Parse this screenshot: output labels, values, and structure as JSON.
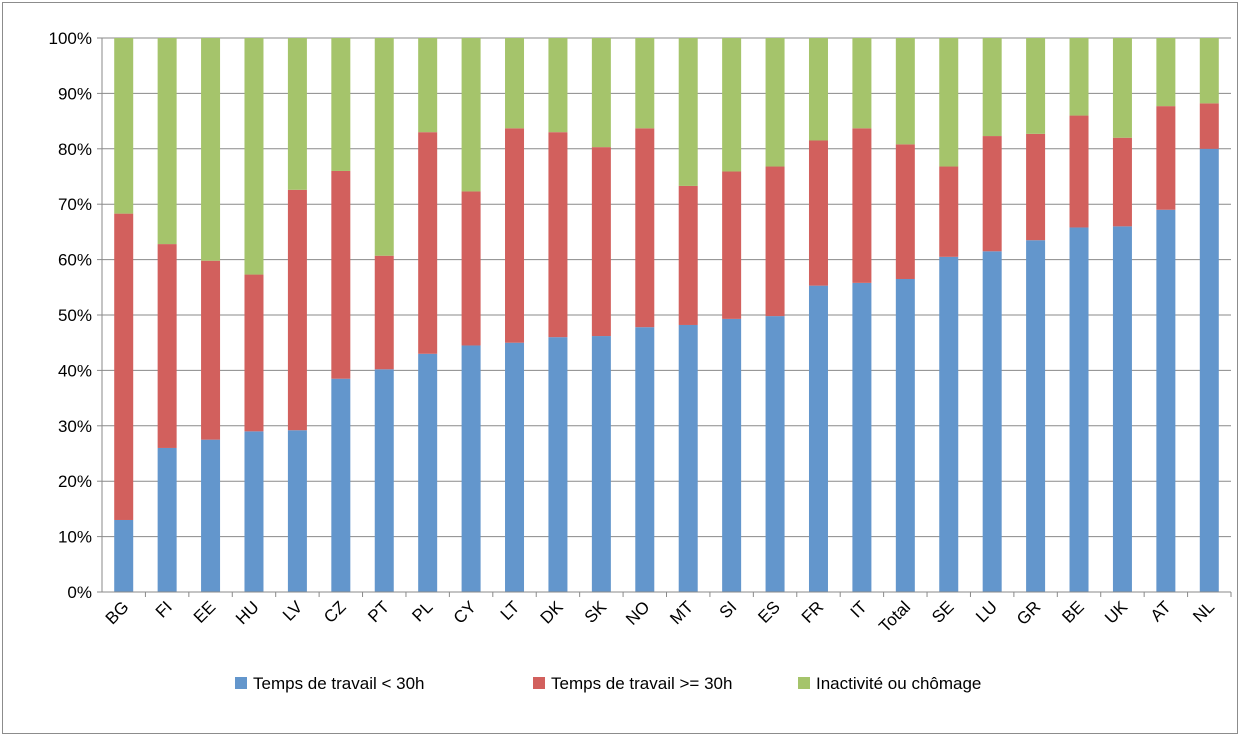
{
  "chart_data": {
    "type": "bar",
    "stacked": true,
    "categories": [
      "BG",
      "FI",
      "EE",
      "HU",
      "LV",
      "CZ",
      "PT",
      "PL",
      "CY",
      "LT",
      "DK",
      "SK",
      "NO",
      "MT",
      "SI",
      "ES",
      "FR",
      "IT",
      "Total",
      "SE",
      "LU",
      "GR",
      "BE",
      "UK",
      "AT",
      "NL"
    ],
    "series": [
      {
        "name": "Temps de travail < 30h",
        "color": "#6396CC",
        "values": [
          13,
          26,
          27.5,
          29,
          29.2,
          38.5,
          40.2,
          43,
          44.5,
          45,
          46,
          46.2,
          47.8,
          48.2,
          49.3,
          49.8,
          55.3,
          55.8,
          56.5,
          60.5,
          61.5,
          63.5,
          65.8,
          66,
          69,
          80
        ]
      },
      {
        "name": "Temps de travail >= 30h",
        "color": "#D2605D",
        "values": [
          55.3,
          36.8,
          32.3,
          28.3,
          43.4,
          37.5,
          20.5,
          40,
          27.8,
          38.7,
          37,
          34.1,
          35.9,
          25.1,
          26.6,
          27,
          26.2,
          27.9,
          24.3,
          16.3,
          20.8,
          19.2,
          20.2,
          16,
          18.7,
          8.2
        ]
      },
      {
        "name": "Inactivité ou chômage",
        "color": "#A5C46B",
        "values": [
          31.7,
          37.2,
          40.2,
          42.7,
          27.4,
          24,
          39.3,
          17,
          27.7,
          16.3,
          17,
          19.7,
          16.3,
          26.7,
          24.1,
          23.2,
          18.5,
          16.3,
          19.2,
          23.2,
          17.7,
          17.3,
          14,
          18,
          12.3,
          11.8
        ]
      }
    ],
    "yticks": [
      "0%",
      "10%",
      "20%",
      "30%",
      "40%",
      "50%",
      "60%",
      "70%",
      "80%",
      "90%",
      "100%"
    ],
    "ylim": [
      0,
      100
    ],
    "grid": true,
    "legend_position": "bottom"
  }
}
